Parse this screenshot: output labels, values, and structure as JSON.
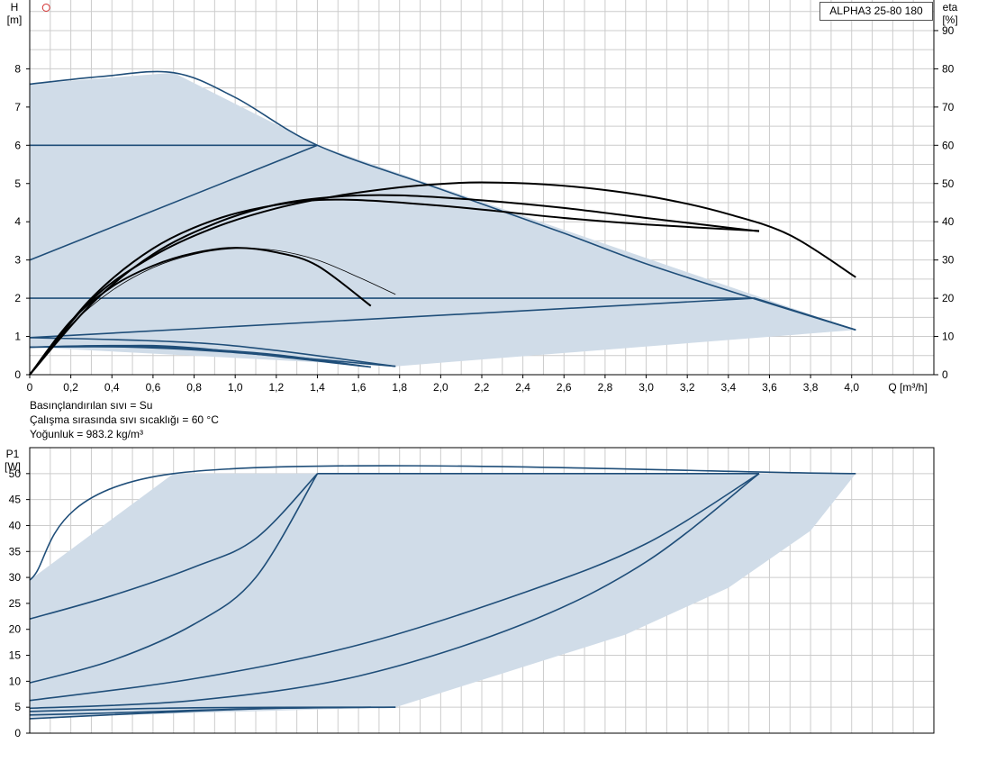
{
  "pump_label": "ALPHA3 25-80 180",
  "notes": [
    "Basınçlandırılan sıvı = Su",
    "Çalışma sırasında sıvı sıcaklığı = 60 °C",
    "Yoğunluk = 983.2 kg/m³"
  ],
  "colors": {
    "area_fill": "#d0dce8",
    "blue_line": "#1f4e79",
    "black_line": "#000000",
    "grid": "#cccccc",
    "marker": "#d43030"
  },
  "chart_data": [
    {
      "type": "line",
      "ylabel": "H",
      "yunit": "[m]",
      "y2label": "eta",
      "y2unit": "[%]",
      "xlabel": "Q [m³/h]",
      "xlim": [
        0,
        4.4
      ],
      "ylim": [
        0,
        9.8
      ],
      "y2lim": [
        0,
        98
      ],
      "grid": true,
      "x_ticks": [
        "0",
        "0,2",
        "0,4",
        "0,6",
        "0,8",
        "1,0",
        "1,2",
        "1,4",
        "1,6",
        "1,8",
        "2,0",
        "2,2",
        "2,4",
        "2,6",
        "2,8",
        "3,0",
        "3,2",
        "3,4",
        "3,6",
        "3,8",
        "4,0"
      ],
      "y_ticks": [
        "0",
        "1",
        "2",
        "3",
        "4",
        "5",
        "6",
        "7",
        "8"
      ],
      "y2_ticks": [
        "0",
        "10",
        "20",
        "30",
        "40",
        "50",
        "60",
        "70",
        "80",
        "90"
      ],
      "shaded_area": [
        [
          0,
          7.6
        ],
        [
          0.7,
          7.9
        ],
        [
          1.4,
          6.0
        ],
        [
          4.02,
          1.17
        ],
        [
          1.78,
          0.22
        ],
        [
          0,
          0.72
        ]
      ],
      "head_curves": [
        {
          "color": "blue",
          "points": [
            [
              0,
              7.6
            ],
            [
              0.35,
              7.8
            ],
            [
              0.7,
              7.9
            ],
            [
              1.0,
              7.25
            ],
            [
              1.4,
              6.0
            ],
            [
              2.0,
              4.85
            ],
            [
              2.6,
              3.7
            ],
            [
              3.0,
              2.9
            ],
            [
              3.53,
              1.98
            ],
            [
              4.02,
              1.17
            ]
          ]
        },
        {
          "color": "blue",
          "points": [
            [
              0,
              6.0
            ],
            [
              1.4,
              6.0
            ]
          ]
        },
        {
          "color": "blue",
          "points": [
            [
              0,
              3.0
            ],
            [
              1.4,
              6.0
            ]
          ]
        },
        {
          "color": "blue",
          "points": [
            [
              0,
              2.0
            ],
            [
              3.53,
              2.0
            ]
          ]
        },
        {
          "color": "blue",
          "points": [
            [
              0,
              0.97
            ],
            [
              3.53,
              2.0
            ]
          ]
        },
        {
          "color": "blue",
          "points": [
            [
              3.53,
              2.0
            ],
            [
              4.02,
              1.17
            ]
          ]
        },
        {
          "color": "blue",
          "points": [
            [
              0,
              0.72
            ],
            [
              0.4,
              0.75
            ],
            [
              0.8,
              0.68
            ],
            [
              1.2,
              0.52
            ],
            [
              1.66,
              0.2
            ]
          ]
        },
        {
          "color": "blue",
          "points": [
            [
              0,
              0.72
            ],
            [
              0.5,
              0.72
            ],
            [
              1.0,
              0.58
            ],
            [
              1.78,
              0.22
            ]
          ]
        },
        {
          "color": "blue",
          "points": [
            [
              0,
              0.97
            ],
            [
              0.9,
              0.8
            ],
            [
              1.78,
              0.22
            ]
          ]
        },
        {
          "color": "blue",
          "points": [
            [
              0,
              0.72
            ],
            [
              0.4,
              0.76
            ],
            [
              0.8,
              0.7
            ],
            [
              1.66,
              0.2
            ]
          ]
        }
      ],
      "efficiency_curves": [
        {
          "weight": "thick",
          "points": [
            [
              0,
              0
            ],
            [
              0.3,
              19.5
            ],
            [
              0.6,
              31
            ],
            [
              0.9,
              38.5
            ],
            [
              1.2,
              43.5
            ],
            [
              1.5,
              46.8
            ],
            [
              1.8,
              49
            ],
            [
              2.0,
              49.9
            ],
            [
              2.2,
              50.3
            ],
            [
              2.5,
              49.8
            ],
            [
              2.8,
              48.3
            ],
            [
              3.1,
              45.8
            ],
            [
              3.4,
              42
            ],
            [
              3.7,
              36.5
            ],
            [
              4.02,
              25.5
            ]
          ]
        },
        {
          "weight": "thick",
          "points": [
            [
              0,
              0
            ],
            [
              0.3,
              18.5
            ],
            [
              0.6,
              31.5
            ],
            [
              0.9,
              39.5
            ],
            [
              1.2,
              44.5
            ],
            [
              1.5,
              46.6
            ],
            [
              1.8,
              46.9
            ],
            [
              2.2,
              45.6
            ],
            [
              2.6,
              43.6
            ],
            [
              3.0,
              41
            ],
            [
              3.55,
              37.5
            ]
          ]
        },
        {
          "weight": "thick",
          "points": [
            [
              0,
              0
            ],
            [
              0.3,
              20
            ],
            [
              0.6,
              33
            ],
            [
              0.9,
              40.5
            ],
            [
              1.2,
              44.4
            ],
            [
              1.5,
              45.8
            ],
            [
              2.0,
              44.2
            ],
            [
              2.6,
              41
            ],
            [
              3.0,
              39.3
            ],
            [
              3.55,
              37.6
            ]
          ]
        },
        {
          "weight": "thick",
          "points": [
            [
              0,
              0
            ],
            [
              0.2,
              14
            ],
            [
              0.4,
              23
            ],
            [
              0.6,
              28.5
            ],
            [
              0.8,
              31.8
            ],
            [
              1.0,
              33.2
            ],
            [
              1.2,
              32
            ],
            [
              1.4,
              28.5
            ],
            [
              1.66,
              18
            ]
          ]
        },
        {
          "weight": "thin",
          "points": [
            [
              0,
              0
            ],
            [
              0.2,
              13
            ],
            [
              0.4,
              22
            ],
            [
              0.6,
              28
            ],
            [
              0.8,
              31.5
            ],
            [
              1.0,
              33
            ],
            [
              1.2,
              32.5
            ],
            [
              1.4,
              30
            ],
            [
              1.6,
              25.5
            ],
            [
              1.78,
              21
            ]
          ]
        }
      ],
      "marker": {
        "x": 0.08,
        "y": 9.6
      }
    },
    {
      "type": "line",
      "ylabel": "P1",
      "yunit": "[W]",
      "xlim": [
        0,
        4.4
      ],
      "ylim": [
        0,
        55
      ],
      "grid": true,
      "y_ticks": [
        "0",
        "5",
        "10",
        "15",
        "20",
        "25",
        "30",
        "35",
        "40",
        "45",
        "50"
      ],
      "shaded_area": [
        [
          0,
          29.5
        ],
        [
          0.7,
          50
        ],
        [
          4.02,
          50
        ],
        [
          3.8,
          39
        ],
        [
          3.4,
          28
        ],
        [
          2.9,
          19
        ],
        [
          2.3,
          11.5
        ],
        [
          1.78,
          5
        ],
        [
          0,
          3
        ]
      ],
      "power_curves": [
        {
          "points": [
            [
              0,
              29.5
            ],
            [
              0.7,
              50
            ],
            [
              4.02,
              50
            ]
          ]
        },
        {
          "points": [
            [
              0,
              22
            ],
            [
              0.4,
              26.5
            ],
            [
              0.8,
              32
            ],
            [
              1.1,
              37.5
            ],
            [
              1.4,
              50
            ]
          ]
        },
        {
          "points": [
            [
              0,
              9.7
            ],
            [
              0.4,
              14
            ],
            [
              0.8,
              21
            ],
            [
              1.1,
              30
            ],
            [
              1.4,
              50
            ]
          ]
        },
        {
          "points": [
            [
              0,
              6.3
            ],
            [
              0.8,
              10.5
            ],
            [
              1.6,
              17
            ],
            [
              2.4,
              27
            ],
            [
              3.0,
              36.5
            ],
            [
              3.55,
              50
            ]
          ]
        },
        {
          "points": [
            [
              0,
              4.8
            ],
            [
              0.8,
              6.3
            ],
            [
              1.6,
              11
            ],
            [
              2.4,
              21
            ],
            [
              3.0,
              33
            ],
            [
              3.55,
              50
            ]
          ]
        },
        {
          "points": [
            [
              0,
              3.5
            ],
            [
              0.4,
              3.9
            ],
            [
              0.8,
              4.4
            ],
            [
              1.2,
              4.8
            ],
            [
              1.66,
              5
            ]
          ]
        },
        {
          "points": [
            [
              0,
              2.8
            ],
            [
              0.6,
              3.9
            ],
            [
              1.2,
              4.8
            ],
            [
              1.78,
              5
            ]
          ]
        },
        {
          "points": [
            [
              0,
              4.2
            ],
            [
              0.8,
              4.9
            ],
            [
              1.78,
              5
            ]
          ]
        },
        {
          "points": [
            [
              1.4,
              50
            ],
            [
              3.55,
              50
            ]
          ]
        }
      ]
    }
  ]
}
